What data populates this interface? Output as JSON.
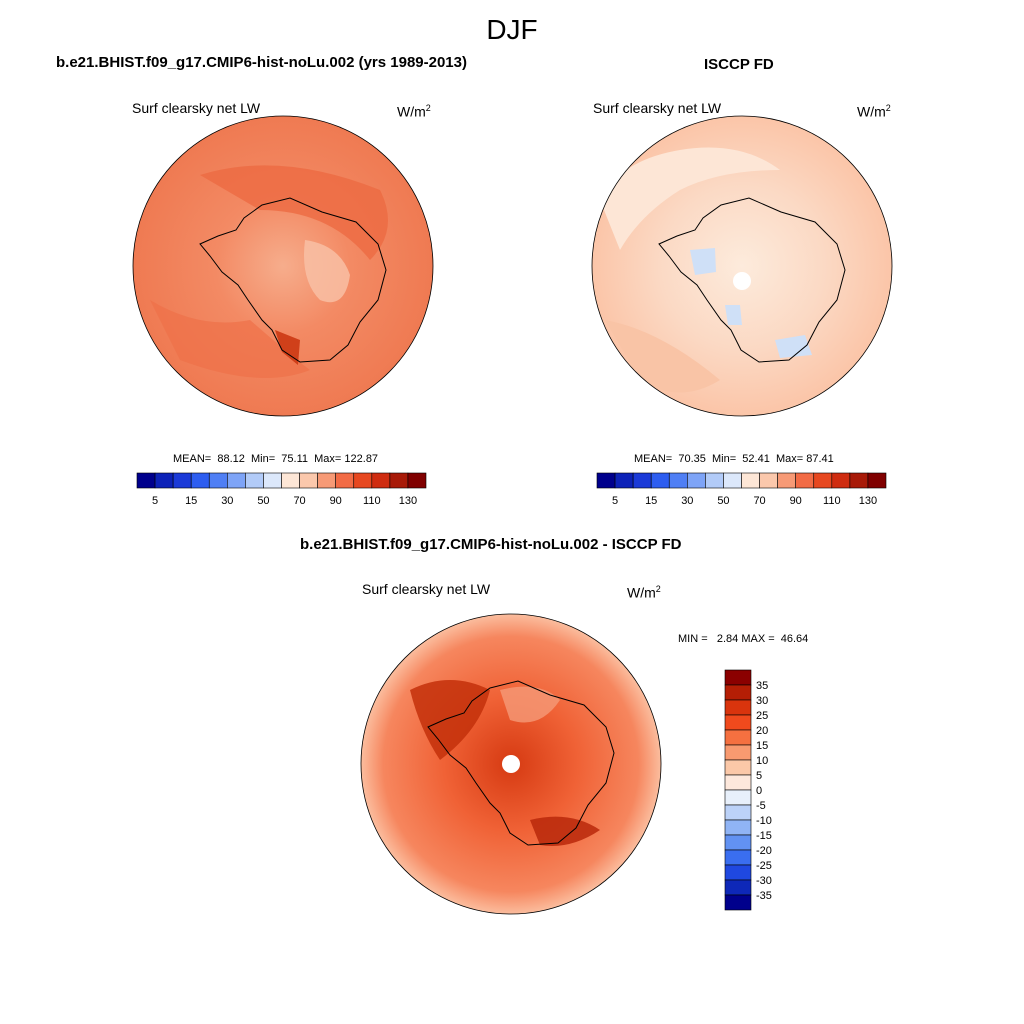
{
  "figure_title": "DJF",
  "colors": {
    "map_bg": "#ee7a55",
    "coast": "#000000"
  },
  "chart_data": [
    {
      "type": "heatmap",
      "title": "b.e21.BHIST.f09_g17.CMIP6-hist-noLu.002 (yrs 1989-2013)",
      "variable": "Surf clearsky net LW",
      "units": "W/m",
      "units_exp": "2",
      "projection": "south polar stereographic",
      "stats": {
        "mean_label": "MEAN=",
        "mean": "88.12",
        "min_label": "Min=",
        "min": "75.11",
        "max_label": "Max=",
        "max": "122.87"
      },
      "colorbar": {
        "orientation": "horizontal",
        "levels": [
          5,
          10,
          15,
          20,
          30,
          40,
          50,
          60,
          70,
          80,
          90,
          100,
          110,
          120,
          130
        ],
        "tick_labels": [
          "5",
          "15",
          "30",
          "50",
          "70",
          "90",
          "110",
          "130"
        ],
        "colors": [
          "#00008c",
          "#0d22b8",
          "#1b3ad8",
          "#2d5df0",
          "#4f7ff5",
          "#7ea4f7",
          "#b2cbf8",
          "#dce8fb",
          "#fde6d6",
          "#fbc8ac",
          "#f79a76",
          "#f26b45",
          "#e74820",
          "#cf2c10",
          "#a81a08",
          "#800000"
        ]
      }
    },
    {
      "type": "heatmap",
      "title": "ISCCP FD",
      "variable": "Surf clearsky net LW",
      "units": "W/m",
      "units_exp": "2",
      "projection": "south polar stereographic",
      "stats": {
        "mean_label": "MEAN=",
        "mean": "70.35",
        "min_label": "Min=",
        "min": "52.41",
        "max_label": "Max=",
        "max": "87.41"
      },
      "colorbar": {
        "orientation": "horizontal",
        "levels": [
          5,
          10,
          15,
          20,
          30,
          40,
          50,
          60,
          70,
          80,
          90,
          100,
          110,
          120,
          130
        ],
        "tick_labels": [
          "5",
          "15",
          "30",
          "50",
          "70",
          "90",
          "110",
          "130"
        ],
        "colors": [
          "#00008c",
          "#0d22b8",
          "#1b3ad8",
          "#2d5df0",
          "#4f7ff5",
          "#7ea4f7",
          "#b2cbf8",
          "#dce8fb",
          "#fde6d6",
          "#fbc8ac",
          "#f79a76",
          "#f26b45",
          "#e74820",
          "#cf2c10",
          "#a81a08",
          "#800000"
        ]
      }
    },
    {
      "type": "heatmap",
      "title": "b.e21.BHIST.f09_g17.CMIP6-hist-noLu.002 - ISCCP FD",
      "variable": "Surf clearsky net LW",
      "units": "W/m",
      "units_exp": "2",
      "projection": "south polar stereographic",
      "stats": {
        "min_label": "MIN =",
        "min": "2.84",
        "max_label": "MAX =",
        "max": "46.64"
      },
      "colorbar": {
        "orientation": "vertical",
        "levels": [
          35,
          30,
          25,
          20,
          15,
          10,
          5,
          0,
          -5,
          -10,
          -15,
          -20,
          -25,
          -30,
          -35
        ],
        "tick_labels": [
          "35",
          "30",
          "25",
          "20",
          "15",
          "10",
          "5",
          "0",
          "-5",
          "-10",
          "-15",
          "-20",
          "-25",
          "-30",
          "-35"
        ],
        "colors": [
          "#8b0000",
          "#b51e05",
          "#d9340d",
          "#f04a1d",
          "#f57040",
          "#f89a70",
          "#fbc8a8",
          "#fde8dc",
          "#e8f0fb",
          "#bcd2f8",
          "#90b4f5",
          "#6292f2",
          "#3a6ef0",
          "#1f48e0",
          "#0e28b8",
          "#00008c"
        ]
      }
    }
  ]
}
